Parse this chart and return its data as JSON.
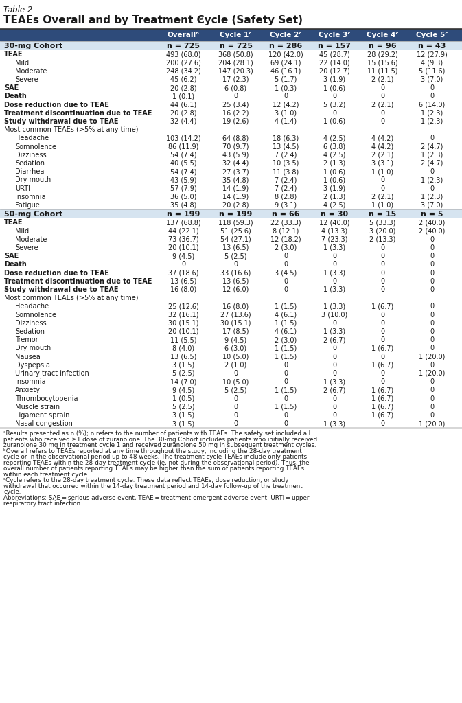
{
  "title_line1": "Table 2.",
  "title_line2": "TEAEs Overall and by Treatment Cycle (Safety Set)",
  "title_superscript": "a",
  "header_bg": "#2E4B7A",
  "header_text_color": "#FFFFFF",
  "cohort_row_bg": "#D6E4F0",
  "columns": [
    "Overallᵇ",
    "Cycle 1ᶜ",
    "Cycle 2ᶜ",
    "Cycle 3ᶜ",
    "Cycle 4ᶜ",
    "Cycle 5ᶜ"
  ],
  "rows_30mg": [
    {
      "label": "30-mg Cohort",
      "values": [
        "n = 725",
        "n = 725",
        "n = 286",
        "n = 157",
        "n = 96",
        "n = 43"
      ],
      "style": "cohort"
    },
    {
      "label": "TEAE",
      "values": [
        "493 (68.0)",
        "368 (50.8)",
        "120 (42.0)",
        "45 (28.7)",
        "28 (29.2)",
        "12 (27.9)"
      ],
      "style": "bold"
    },
    {
      "label": "Mild",
      "values": [
        "200 (27.6)",
        "204 (28.1)",
        "69 (24.1)",
        "22 (14.0)",
        "15 (15.6)",
        "4 (9.3)"
      ],
      "style": "indent"
    },
    {
      "label": "Moderate",
      "values": [
        "248 (34.2)",
        "147 (20.3)",
        "46 (16.1)",
        "20 (12.7)",
        "11 (11.5)",
        "5 (11.6)"
      ],
      "style": "indent"
    },
    {
      "label": "Severe",
      "values": [
        "45 (6.2)",
        "17 (2.3)",
        "5 (1.7)",
        "3 (1.9)",
        "2 (2.1)",
        "3 (7.0)"
      ],
      "style": "indent"
    },
    {
      "label": "SAE",
      "values": [
        "20 (2.8)",
        "6 (0.8)",
        "1 (0.3)",
        "1 (0.6)",
        "0",
        "0"
      ],
      "style": "bold"
    },
    {
      "label": "Death",
      "values": [
        "1 (0.1)",
        "0",
        "0",
        "0",
        "0",
        "0"
      ],
      "style": "bold"
    },
    {
      "label": "Dose reduction due to TEAE",
      "values": [
        "44 (6.1)",
        "25 (3.4)",
        "12 (4.2)",
        "5 (3.2)",
        "2 (2.1)",
        "6 (14.0)"
      ],
      "style": "bold"
    },
    {
      "label": "Treatment discontinuation due to TEAE",
      "values": [
        "20 (2.8)",
        "16 (2.2)",
        "3 (1.0)",
        "0",
        "0",
        "1 (2.3)"
      ],
      "style": "bold"
    },
    {
      "label": "Study withdrawal due to TEAE",
      "values": [
        "32 (4.4)",
        "19 (2.6)",
        "4 (1.4)",
        "1 (0.6)",
        "0",
        "1 (2.3)"
      ],
      "style": "bold"
    },
    {
      "label": "Most common TEAEs (>5% at any time)",
      "values": [
        "",
        "",
        "",
        "",
        "",
        ""
      ],
      "style": "normal"
    },
    {
      "label": "Headache",
      "values": [
        "103 (14.2)",
        "64 (8.8)",
        "18 (6.3)",
        "4 (2.5)",
        "4 (4.2)",
        "0"
      ],
      "style": "indent"
    },
    {
      "label": "Somnolence",
      "values": [
        "86 (11.9)",
        "70 (9.7)",
        "13 (4.5)",
        "6 (3.8)",
        "4 (4.2)",
        "2 (4.7)"
      ],
      "style": "indent"
    },
    {
      "label": "Dizziness",
      "values": [
        "54 (7.4)",
        "43 (5.9)",
        "7 (2.4)",
        "4 (2.5)",
        "2 (2.1)",
        "1 (2.3)"
      ],
      "style": "indent"
    },
    {
      "label": "Sedation",
      "values": [
        "40 (5.5)",
        "32 (4.4)",
        "10 (3.5)",
        "2 (1.3)",
        "3 (3.1)",
        "2 (4.7)"
      ],
      "style": "indent"
    },
    {
      "label": "Diarrhea",
      "values": [
        "54 (7.4)",
        "27 (3.7)",
        "11 (3.8)",
        "1 (0.6)",
        "1 (1.0)",
        "0"
      ],
      "style": "indent"
    },
    {
      "label": "Dry mouth",
      "values": [
        "43 (5.9)",
        "35 (4.8)",
        "7 (2.4)",
        "1 (0.6)",
        "0",
        "1 (2.3)"
      ],
      "style": "indent"
    },
    {
      "label": "URTI",
      "values": [
        "57 (7.9)",
        "14 (1.9)",
        "7 (2.4)",
        "3 (1.9)",
        "0",
        "0"
      ],
      "style": "indent"
    },
    {
      "label": "Insomnia",
      "values": [
        "36 (5.0)",
        "14 (1.9)",
        "8 (2.8)",
        "2 (1.3)",
        "2 (2.1)",
        "1 (2.3)"
      ],
      "style": "indent"
    },
    {
      "label": "Fatigue",
      "values": [
        "35 (4.8)",
        "20 (2.8)",
        "9 (3.1)",
        "4 (2.5)",
        "1 (1.0)",
        "3 (7.0)"
      ],
      "style": "indent"
    }
  ],
  "rows_50mg": [
    {
      "label": "50-mg Cohort",
      "values": [
        "n = 199",
        "n = 199",
        "n = 66",
        "n = 30",
        "n = 15",
        "n = 5"
      ],
      "style": "cohort"
    },
    {
      "label": "TEAE",
      "values": [
        "137 (68.8)",
        "118 (59.3)",
        "22 (33.3)",
        "12 (40.0)",
        "5 (33.3)",
        "2 (40.0)"
      ],
      "style": "bold"
    },
    {
      "label": "Mild",
      "values": [
        "44 (22.1)",
        "51 (25.6)",
        "8 (12.1)",
        "4 (13.3)",
        "3 (20.0)",
        "2 (40.0)"
      ],
      "style": "indent"
    },
    {
      "label": "Moderate",
      "values": [
        "73 (36.7)",
        "54 (27.1)",
        "12 (18.2)",
        "7 (23.3)",
        "2 (13.3)",
        "0"
      ],
      "style": "indent"
    },
    {
      "label": "Severe",
      "values": [
        "20 (10.1)",
        "13 (6.5)",
        "2 (3.0)",
        "1 (3.3)",
        "0",
        "0"
      ],
      "style": "indent"
    },
    {
      "label": "SAE",
      "values": [
        "9 (4.5)",
        "5 (2.5)",
        "0",
        "0",
        "0",
        "0"
      ],
      "style": "bold"
    },
    {
      "label": "Death",
      "values": [
        "0",
        "0",
        "0",
        "0",
        "0",
        "0"
      ],
      "style": "bold"
    },
    {
      "label": "Dose reduction due to TEAE",
      "values": [
        "37 (18.6)",
        "33 (16.6)",
        "3 (4.5)",
        "1 (3.3)",
        "0",
        "0"
      ],
      "style": "bold"
    },
    {
      "label": "Treatment discontinuation due to TEAE",
      "values": [
        "13 (6.5)",
        "13 (6.5)",
        "0",
        "0",
        "0",
        "0"
      ],
      "style": "bold"
    },
    {
      "label": "Study withdrawal due to TEAE",
      "values": [
        "16 (8.0)",
        "12 (6.0)",
        "0",
        "1 (3.3)",
        "0",
        "0"
      ],
      "style": "bold"
    },
    {
      "label": "Most common TEAEs (>5% at any time)",
      "values": [
        "",
        "",
        "",
        "",
        "",
        ""
      ],
      "style": "normal"
    },
    {
      "label": "Headache",
      "values": [
        "25 (12.6)",
        "16 (8.0)",
        "1 (1.5)",
        "1 (3.3)",
        "1 (6.7)",
        "0"
      ],
      "style": "indent"
    },
    {
      "label": "Somnolence",
      "values": [
        "32 (16.1)",
        "27 (13.6)",
        "4 (6.1)",
        "3 (10.0)",
        "0",
        "0"
      ],
      "style": "indent"
    },
    {
      "label": "Dizziness",
      "values": [
        "30 (15.1)",
        "30 (15.1)",
        "1 (1.5)",
        "0",
        "0",
        "0"
      ],
      "style": "indent"
    },
    {
      "label": "Sedation",
      "values": [
        "20 (10.1)",
        "17 (8.5)",
        "4 (6.1)",
        "1 (3.3)",
        "0",
        "0"
      ],
      "style": "indent"
    },
    {
      "label": "Tremor",
      "values": [
        "11 (5.5)",
        "9 (4.5)",
        "2 (3.0)",
        "2 (6.7)",
        "0",
        "0"
      ],
      "style": "indent"
    },
    {
      "label": "Dry mouth",
      "values": [
        "8 (4.0)",
        "6 (3.0)",
        "1 (1.5)",
        "0",
        "1 (6.7)",
        "0"
      ],
      "style": "indent"
    },
    {
      "label": "Nausea",
      "values": [
        "13 (6.5)",
        "10 (5.0)",
        "1 (1.5)",
        "0",
        "0",
        "1 (20.0)"
      ],
      "style": "indent"
    },
    {
      "label": "Dyspepsia",
      "values": [
        "3 (1.5)",
        "2 (1.0)",
        "0",
        "0",
        "1 (6.7)",
        "0"
      ],
      "style": "indent"
    },
    {
      "label": "Urinary tract infection",
      "values": [
        "5 (2.5)",
        "0",
        "0",
        "0",
        "0",
        "1 (20.0)"
      ],
      "style": "indent"
    },
    {
      "label": "Insomnia",
      "values": [
        "14 (7.0)",
        "10 (5.0)",
        "0",
        "1 (3.3)",
        "0",
        "0"
      ],
      "style": "indent"
    },
    {
      "label": "Anxiety",
      "values": [
        "9 (4.5)",
        "5 (2.5)",
        "1 (1.5)",
        "2 (6.7)",
        "1 (6.7)",
        "0"
      ],
      "style": "indent"
    },
    {
      "label": "Thrombocytopenia",
      "values": [
        "1 (0.5)",
        "0",
        "0",
        "0",
        "1 (6.7)",
        "0"
      ],
      "style": "indent"
    },
    {
      "label": "Muscle strain",
      "values": [
        "5 (2.5)",
        "0",
        "1 (1.5)",
        "0",
        "1 (6.7)",
        "0"
      ],
      "style": "indent"
    },
    {
      "label": "Ligament sprain",
      "values": [
        "3 (1.5)",
        "0",
        "0",
        "0",
        "1 (6.7)",
        "0"
      ],
      "style": "indent"
    },
    {
      "label": "Nasal congestion",
      "values": [
        "3 (1.5)",
        "0",
        "0",
        "1 (3.3)",
        "0",
        "1 (20.0)"
      ],
      "style": "indent"
    }
  ],
  "footnote_lines": [
    "ᵃResults presented as n (%); n refers to the number of patients with TEAEs. The safety set included all patients who received ≥1 dose of zuranolone. The 30-mg Cohort includes patients who initially received zuranolone 30 mg in treatment cycle 1 and received zuranolone 50 mg in subsequent treatment cycles.",
    "ᵇOverall refers to TEAEs reported at any time throughout the study, including the 28-day treatment cycle or in the observational period up to 48 weeks. The treatment cycle TEAEs include only patients reporting TEAEs within the 28-day treatment cycle (ie, not during the observational period). Thus, the overall number of patients reporting TEAEs may be higher than the sum of patients reporting TEAEs within each treatment cycle.",
    "ᶜCycle refers to the 28-day treatment cycle. These data reflect TEAEs, dose reduction, or study withdrawal that occurred within the 14-day treatment period and 14-day follow-up of the treatment cycle.",
    "Abbreviations: SAE = serious adverse event, TEAE = treatment-emergent adverse event, URTI = upper respiratory tract infection."
  ],
  "border_color": "#333333",
  "text_color": "#1A1A1A"
}
